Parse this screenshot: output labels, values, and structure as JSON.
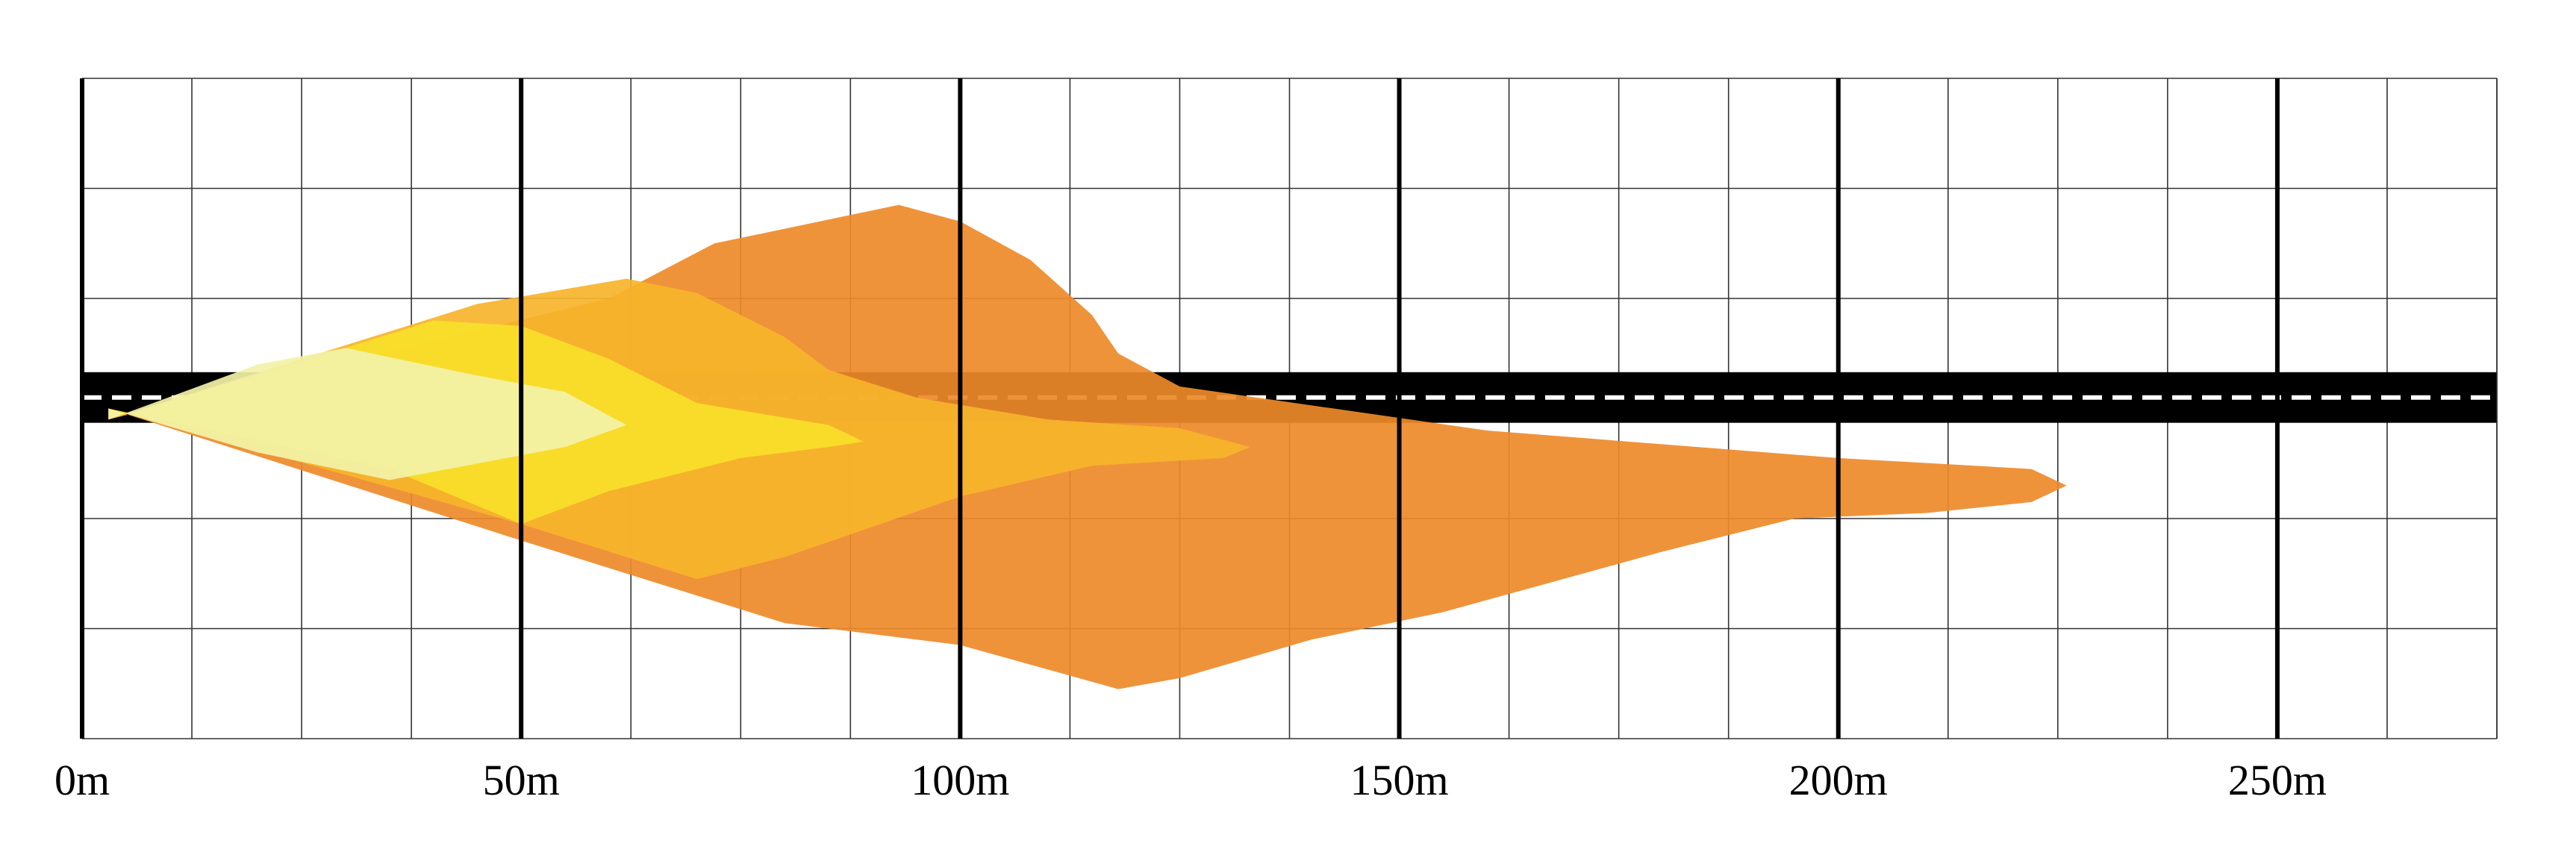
{
  "chart_data": {
    "type": "area",
    "title": "",
    "xlabel": "",
    "ylabel": "",
    "x_unit": "m",
    "xlim": [
      0,
      275
    ],
    "ylim": [
      -3,
      3
    ],
    "x_ticks": [
      {
        "value": 0,
        "label": "0m"
      },
      {
        "value": 50,
        "label": "50m"
      },
      {
        "value": 100,
        "label": "100m"
      },
      {
        "value": 150,
        "label": "150m"
      },
      {
        "value": 200,
        "label": "200m"
      },
      {
        "value": 250,
        "label": "250m"
      }
    ],
    "minor_grid_step_x": 12.5,
    "grid_y_values": [
      -3,
      -2,
      -1,
      0,
      1,
      2,
      3
    ],
    "grid": true,
    "legend": "none",
    "road": {
      "y_center": 0.1,
      "half_width": 0.23,
      "color": "#000000",
      "center_line_color": "#ffffff"
    },
    "series": [
      {
        "color": "#ee8a2a",
        "points": [
          [
            3,
            -0.1
          ],
          [
            60,
            1.0
          ],
          [
            72,
            1.5
          ],
          [
            93,
            1.85
          ],
          [
            100,
            1.7
          ],
          [
            108,
            1.35
          ],
          [
            115,
            0.85
          ],
          [
            118,
            0.5
          ],
          [
            125,
            0.2
          ],
          [
            160,
            -0.2
          ],
          [
            200,
            -0.45
          ],
          [
            222,
            -0.55
          ],
          [
            226,
            -0.7
          ],
          [
            222,
            -0.85
          ],
          [
            210,
            -0.95
          ],
          [
            195,
            -1.0
          ],
          [
            180,
            -1.3
          ],
          [
            155,
            -1.85
          ],
          [
            140,
            -2.1
          ],
          [
            125,
            -2.45
          ],
          [
            118,
            -2.55
          ],
          [
            100,
            -2.15
          ],
          [
            80,
            -1.95
          ],
          [
            50,
            -1.2
          ],
          [
            3,
            0.0
          ]
        ]
      },
      {
        "color": "#f7b42b",
        "points": [
          [
            3,
            -0.1
          ],
          [
            45,
            0.95
          ],
          [
            62,
            1.18
          ],
          [
            70,
            1.05
          ],
          [
            80,
            0.65
          ],
          [
            85,
            0.35
          ],
          [
            95,
            0.1
          ],
          [
            110,
            -0.1
          ],
          [
            125,
            -0.18
          ],
          [
            133,
            -0.35
          ],
          [
            130,
            -0.45
          ],
          [
            115,
            -0.52
          ],
          [
            100,
            -0.8
          ],
          [
            80,
            -1.35
          ],
          [
            70,
            -1.55
          ],
          [
            50,
            -1.05
          ],
          [
            3,
            0.0
          ]
        ]
      },
      {
        "color": "#f9e02a",
        "points": [
          [
            3,
            -0.1
          ],
          [
            30,
            0.55
          ],
          [
            40,
            0.8
          ],
          [
            50,
            0.75
          ],
          [
            60,
            0.45
          ],
          [
            70,
            0.05
          ],
          [
            85,
            -0.15
          ],
          [
            89,
            -0.3
          ],
          [
            85,
            -0.35
          ],
          [
            75,
            -0.45
          ],
          [
            60,
            -0.75
          ],
          [
            50,
            -1.05
          ],
          [
            35,
            -0.55
          ],
          [
            3,
            0.0
          ]
        ]
      },
      {
        "color": "#f2f2a8",
        "points": [
          [
            3,
            -0.1
          ],
          [
            20,
            0.4
          ],
          [
            30,
            0.55
          ],
          [
            45,
            0.3
          ],
          [
            55,
            0.15
          ],
          [
            62,
            -0.15
          ],
          [
            55,
            -0.35
          ],
          [
            45,
            -0.5
          ],
          [
            35,
            -0.65
          ],
          [
            20,
            -0.4
          ],
          [
            3,
            0.0
          ]
        ]
      }
    ]
  }
}
